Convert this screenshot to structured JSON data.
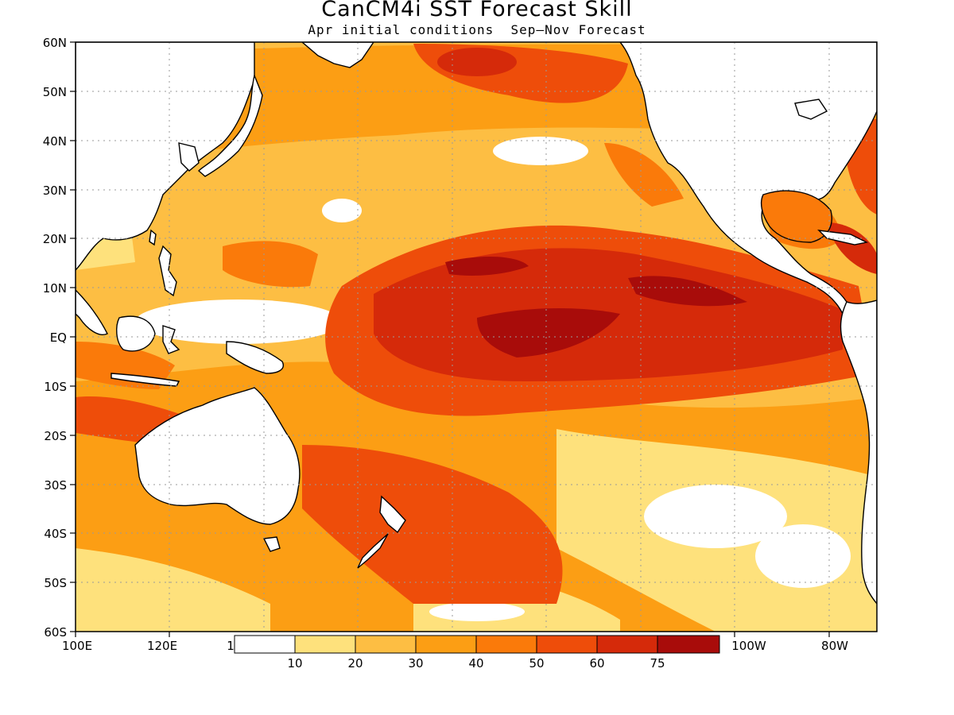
{
  "title": "CanCM4i SST Forecast Skill",
  "subtitle": "Apr initial conditions  Sep–Nov Forecast",
  "axes": {
    "lat_labels": [
      "60N",
      "50N",
      "40N",
      "30N",
      "20N",
      "10N",
      "EQ",
      "10S",
      "20S",
      "30S",
      "40S",
      "50S",
      "60S"
    ],
    "lon_labels": [
      "100E",
      "120E",
      "1",
      "100W",
      "80W"
    ]
  },
  "colorbar": {
    "labels": [
      "10",
      "20",
      "30",
      "40",
      "50",
      "60",
      "75"
    ],
    "colors": [
      "#ffffff",
      "#fee17c",
      "#fdbe43",
      "#fc9e14",
      "#fa7a0a",
      "#ee4d0a",
      "#d52a0a",
      "#a80c0a"
    ]
  },
  "map_colors": {
    "land": "#ffffff",
    "coast": "#000000",
    "grid": "#9a9a9a"
  }
}
